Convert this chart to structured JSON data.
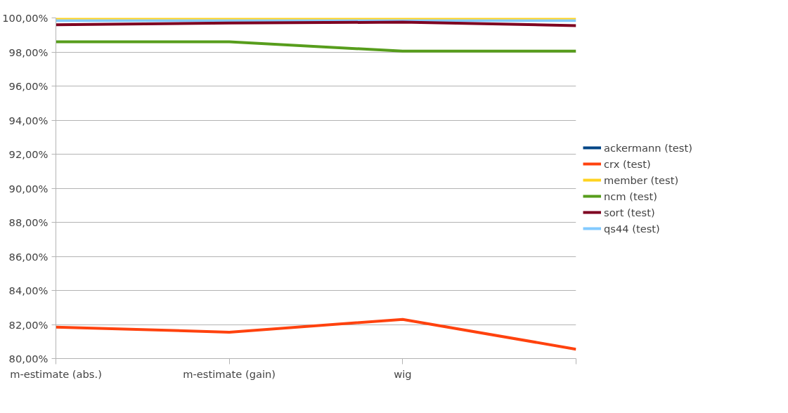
{
  "chart_data": {
    "type": "line",
    "categories": [
      "m-estimate (abs.)",
      "m-estimate (gain)",
      "wig",
      null
    ],
    "series": [
      {
        "name": "ackermann (test)",
        "color": "#004586",
        "values": [
          null,
          null,
          null,
          null
        ]
      },
      {
        "name": "crx (test)",
        "color": "#ff420e",
        "values": [
          81.85,
          81.55,
          82.3,
          80.55
        ]
      },
      {
        "name": "member (test)",
        "color": "#ffd320",
        "values": [
          100,
          100,
          100,
          100
        ]
      },
      {
        "name": "ncm (test)",
        "color": "#579d1c",
        "values": [
          98.6,
          98.6,
          98.05,
          98.05
        ]
      },
      {
        "name": "sort (test)",
        "color": "#7e0021",
        "values": [
          99.6,
          99.7,
          99.75,
          99.55
        ]
      },
      {
        "name": "qs44 (test)",
        "color": "#83caff",
        "values": [
          99.85,
          99.85,
          99.85,
          99.85
        ]
      }
    ],
    "ylim": [
      80,
      100
    ],
    "yticks": [
      {
        "value": 80,
        "label": "80,00%"
      },
      {
        "value": 82,
        "label": "82,00%"
      },
      {
        "value": 84,
        "label": "84,00%"
      },
      {
        "value": 86,
        "label": "86,00%"
      },
      {
        "value": 88,
        "label": "88,00%"
      },
      {
        "value": 90,
        "label": "90,00%"
      },
      {
        "value": 92,
        "label": "92,00%"
      },
      {
        "value": 94,
        "label": "94,00%"
      },
      {
        "value": 96,
        "label": "96,00%"
      },
      {
        "value": 98,
        "label": "98,00%"
      },
      {
        "value": 100,
        "label": "100,00%"
      }
    ],
    "grid": "y",
    "legend": "right",
    "marker": "none",
    "line_style": "solid"
  }
}
